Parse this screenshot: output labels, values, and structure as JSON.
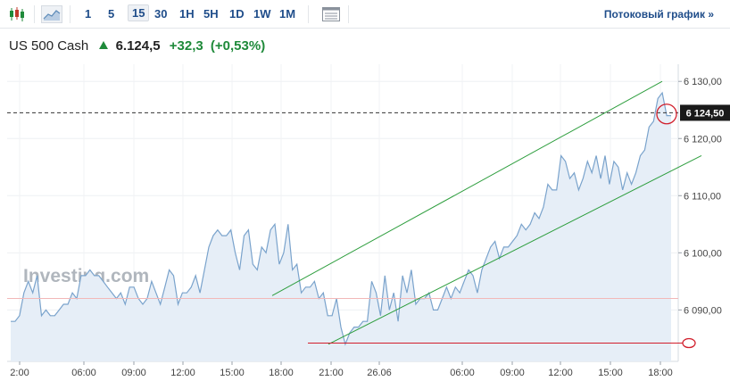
{
  "toolbar": {
    "intervals": [
      "1",
      "5",
      "15",
      "30",
      "1H",
      "5H",
      "1D",
      "1W",
      "1M"
    ],
    "active_interval": "15",
    "stream_link": "Потоковый график »"
  },
  "quote": {
    "name": "US 500 Cash",
    "price": "6.124,5",
    "change": "+32,3",
    "change_pct": "(+0,53%)",
    "direction": "up"
  },
  "watermark": "Investing.com",
  "chart_data": {
    "type": "area",
    "x_tick_labels": [
      "2:00",
      "06:00",
      "09:00",
      "12:00",
      "15:00",
      "18:00",
      "21:00",
      "26.06",
      "06:00",
      "09:00",
      "12:00",
      "15:00",
      "18:00"
    ],
    "y_tick_labels": [
      "6 090,00",
      "6 100,00",
      "6 110,00",
      "6 120,00",
      "6 130,00"
    ],
    "ylim": [
      6081,
      6133
    ],
    "last_price_label": "6 124,50",
    "last_price": 6124.5,
    "series": [
      {
        "values": [
          6088,
          6088,
          6089,
          6093,
          6095,
          6093,
          6096,
          6089,
          6090,
          6089,
          6089,
          6090,
          6091,
          6091,
          6093,
          6092,
          6096,
          6096,
          6097,
          6096,
          6096,
          6095,
          6094,
          6093,
          6092,
          6093,
          6091,
          6094,
          6094,
          6092,
          6091,
          6092,
          6095,
          6093,
          6091,
          6094,
          6097,
          6096,
          6091,
          6093,
          6093,
          6094,
          6096,
          6093,
          6097,
          6101,
          6103,
          6104,
          6103,
          6103,
          6104,
          6100,
          6097,
          6103,
          6104,
          6098,
          6097,
          6101,
          6100,
          6104,
          6105,
          6098,
          6100,
          6105,
          6097,
          6098,
          6093,
          6094,
          6094,
          6095,
          6092,
          6093,
          6089,
          6089,
          6092,
          6087,
          6084,
          6086,
          6087,
          6087,
          6088,
          6088,
          6095,
          6093,
          6089,
          6096,
          6090,
          6093,
          6088,
          6096,
          6093,
          6097,
          6091,
          6092,
          6092,
          6093,
          6090,
          6090,
          6092,
          6094,
          6092,
          6094,
          6093,
          6095,
          6097,
          6096,
          6093,
          6097,
          6099,
          6101,
          6102,
          6099,
          6101,
          6101,
          6102,
          6103,
          6105,
          6104,
          6105,
          6107,
          6106,
          6108,
          6112,
          6111,
          6111,
          6117,
          6116,
          6113,
          6114,
          6111,
          6113,
          6116,
          6114,
          6117,
          6113,
          6117,
          6112,
          6116,
          6115,
          6111,
          6114,
          6112,
          6114,
          6117,
          6118,
          6122,
          6123,
          6127,
          6128,
          6124,
          6124
        ]
      }
    ],
    "annotations": {
      "channel_upper": [
        [
          6092.5,
          6130
        ]
      ],
      "channel_lower": [
        [
          6084,
          6117
        ]
      ],
      "horizontal_support": 6084.2,
      "horizontal_resistance_red": 6092,
      "current_price_dashed": 6124.5
    }
  }
}
